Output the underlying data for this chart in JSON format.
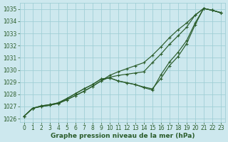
{
  "title": "Graphe pression niveau de la mer (hPa)",
  "bg_color": "#cde8ee",
  "grid_color": "#9ecdd5",
  "line_color": "#2a5c2a",
  "xlim": [
    -0.5,
    23.5
  ],
  "ylim": [
    1025.7,
    1035.5
  ],
  "yticks": [
    1026,
    1027,
    1028,
    1029,
    1030,
    1031,
    1032,
    1033,
    1034,
    1035
  ],
  "xticks": [
    0,
    1,
    2,
    3,
    4,
    5,
    6,
    7,
    8,
    9,
    10,
    11,
    12,
    13,
    14,
    15,
    16,
    17,
    18,
    19,
    20,
    21,
    22,
    23
  ],
  "series_straight_low": [
    1026.2,
    1026.85,
    1027.0,
    1027.1,
    1027.25,
    1027.55,
    1027.9,
    1028.25,
    1028.65,
    1029.1,
    1029.4,
    1029.55,
    1029.65,
    1029.75,
    1029.85,
    1030.6,
    1031.3,
    1032.1,
    1032.8,
    1033.5,
    1034.5,
    1035.05,
    1034.9,
    1034.7
  ],
  "series_straight_high": [
    1026.2,
    1026.85,
    1027.0,
    1027.1,
    1027.25,
    1027.55,
    1027.9,
    1028.25,
    1028.65,
    1029.1,
    1029.55,
    1029.85,
    1030.1,
    1030.35,
    1030.6,
    1031.2,
    1031.9,
    1032.65,
    1033.3,
    1033.85,
    1034.5,
    1035.05,
    1034.9,
    1034.7
  ],
  "series_dip_low": [
    1026.2,
    1026.85,
    1027.05,
    1027.15,
    1027.3,
    1027.65,
    1028.05,
    1028.45,
    1028.8,
    1029.25,
    1029.35,
    1029.1,
    1028.95,
    1028.8,
    1028.6,
    1028.45,
    1029.3,
    1030.35,
    1031.1,
    1032.15,
    1033.7,
    1035.05,
    1034.9,
    1034.7
  ],
  "series_dip_high": [
    1026.2,
    1026.85,
    1027.05,
    1027.15,
    1027.3,
    1027.65,
    1028.05,
    1028.45,
    1028.8,
    1029.25,
    1029.35,
    1029.1,
    1028.95,
    1028.8,
    1028.55,
    1028.35,
    1029.6,
    1030.65,
    1031.45,
    1032.4,
    1033.85,
    1035.05,
    1034.9,
    1034.7
  ],
  "title_fontsize": 6.5,
  "tick_fontsize": 5.5,
  "lw": 0.85,
  "ms": 2.5
}
